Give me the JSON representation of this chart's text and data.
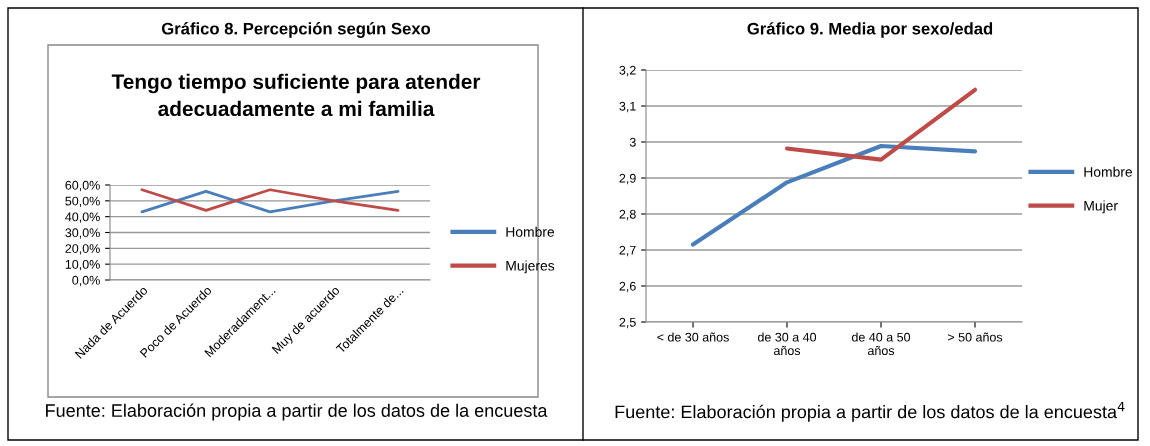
{
  "chart_data": [
    {
      "type": "line",
      "title": "Gráfico 8. Percepción según Sexo",
      "subtitle": "Tengo tiempo suficiente para atender\nadecuadamente a mi familia",
      "categories": [
        "Nada de Acuerdo",
        "Poco de Acuerdo",
        "Moderadament...",
        "Muy de acuerdo",
        "Totalmente de..."
      ],
      "series": [
        {
          "name": "Hombre",
          "color": "#4a7ebb",
          "values": [
            43,
            56,
            43,
            50,
            56
          ]
        },
        {
          "name": "Mujeres",
          "color": "#be4b48",
          "values": [
            57,
            44,
            57,
            50,
            44
          ]
        }
      ],
      "ylim": [
        0,
        60
      ],
      "yticks": [
        {
          "value": 0,
          "label": "0,0%"
        },
        {
          "value": 10,
          "label": "10,0%"
        },
        {
          "value": 20,
          "label": "20,0%"
        },
        {
          "value": 30,
          "label": "30,0%"
        },
        {
          "value": 40,
          "label": "40,0%"
        },
        {
          "value": 50,
          "label": "50,0%"
        },
        {
          "value": 60,
          "label": "60,0%"
        }
      ],
      "grid": "y",
      "legend": "right",
      "annotations": [
        "Fuente: Elaboración propia a partir de los datos de la encuesta"
      ]
    },
    {
      "type": "line",
      "title": "Gráfico 9. Media por sexo/edad",
      "categories": [
        "< de 30 años",
        "de 30 a 40\naños",
        "de 40 a 50\naños",
        "> 50 años"
      ],
      "series": [
        {
          "name": "Hombre",
          "color": "#4a7ebb",
          "values": [
            2.715,
            2.888,
            2.989,
            2.974
          ]
        },
        {
          "name": "Mujer",
          "color": "#be4b48",
          "values": [
            null,
            2.982,
            2.951,
            3.145
          ]
        }
      ],
      "ylim": [
        2.5,
        3.2
      ],
      "yticks": [
        {
          "value": 2.5,
          "label": "2,5"
        },
        {
          "value": 2.6,
          "label": "2,6"
        },
        {
          "value": 2.7,
          "label": "2,7"
        },
        {
          "value": 2.8,
          "label": "2,8"
        },
        {
          "value": 2.9,
          "label": "2,9"
        },
        3,
        {
          "value": 3.1,
          "label": "3,1"
        },
        {
          "value": 3.2,
          "label": "3,2"
        }
      ],
      "grid": "y",
      "legend": "right",
      "annotations": [
        "Fuente: Elaboración propia a partir de los datos de la encuesta$^{4}$"
      ]
    }
  ]
}
